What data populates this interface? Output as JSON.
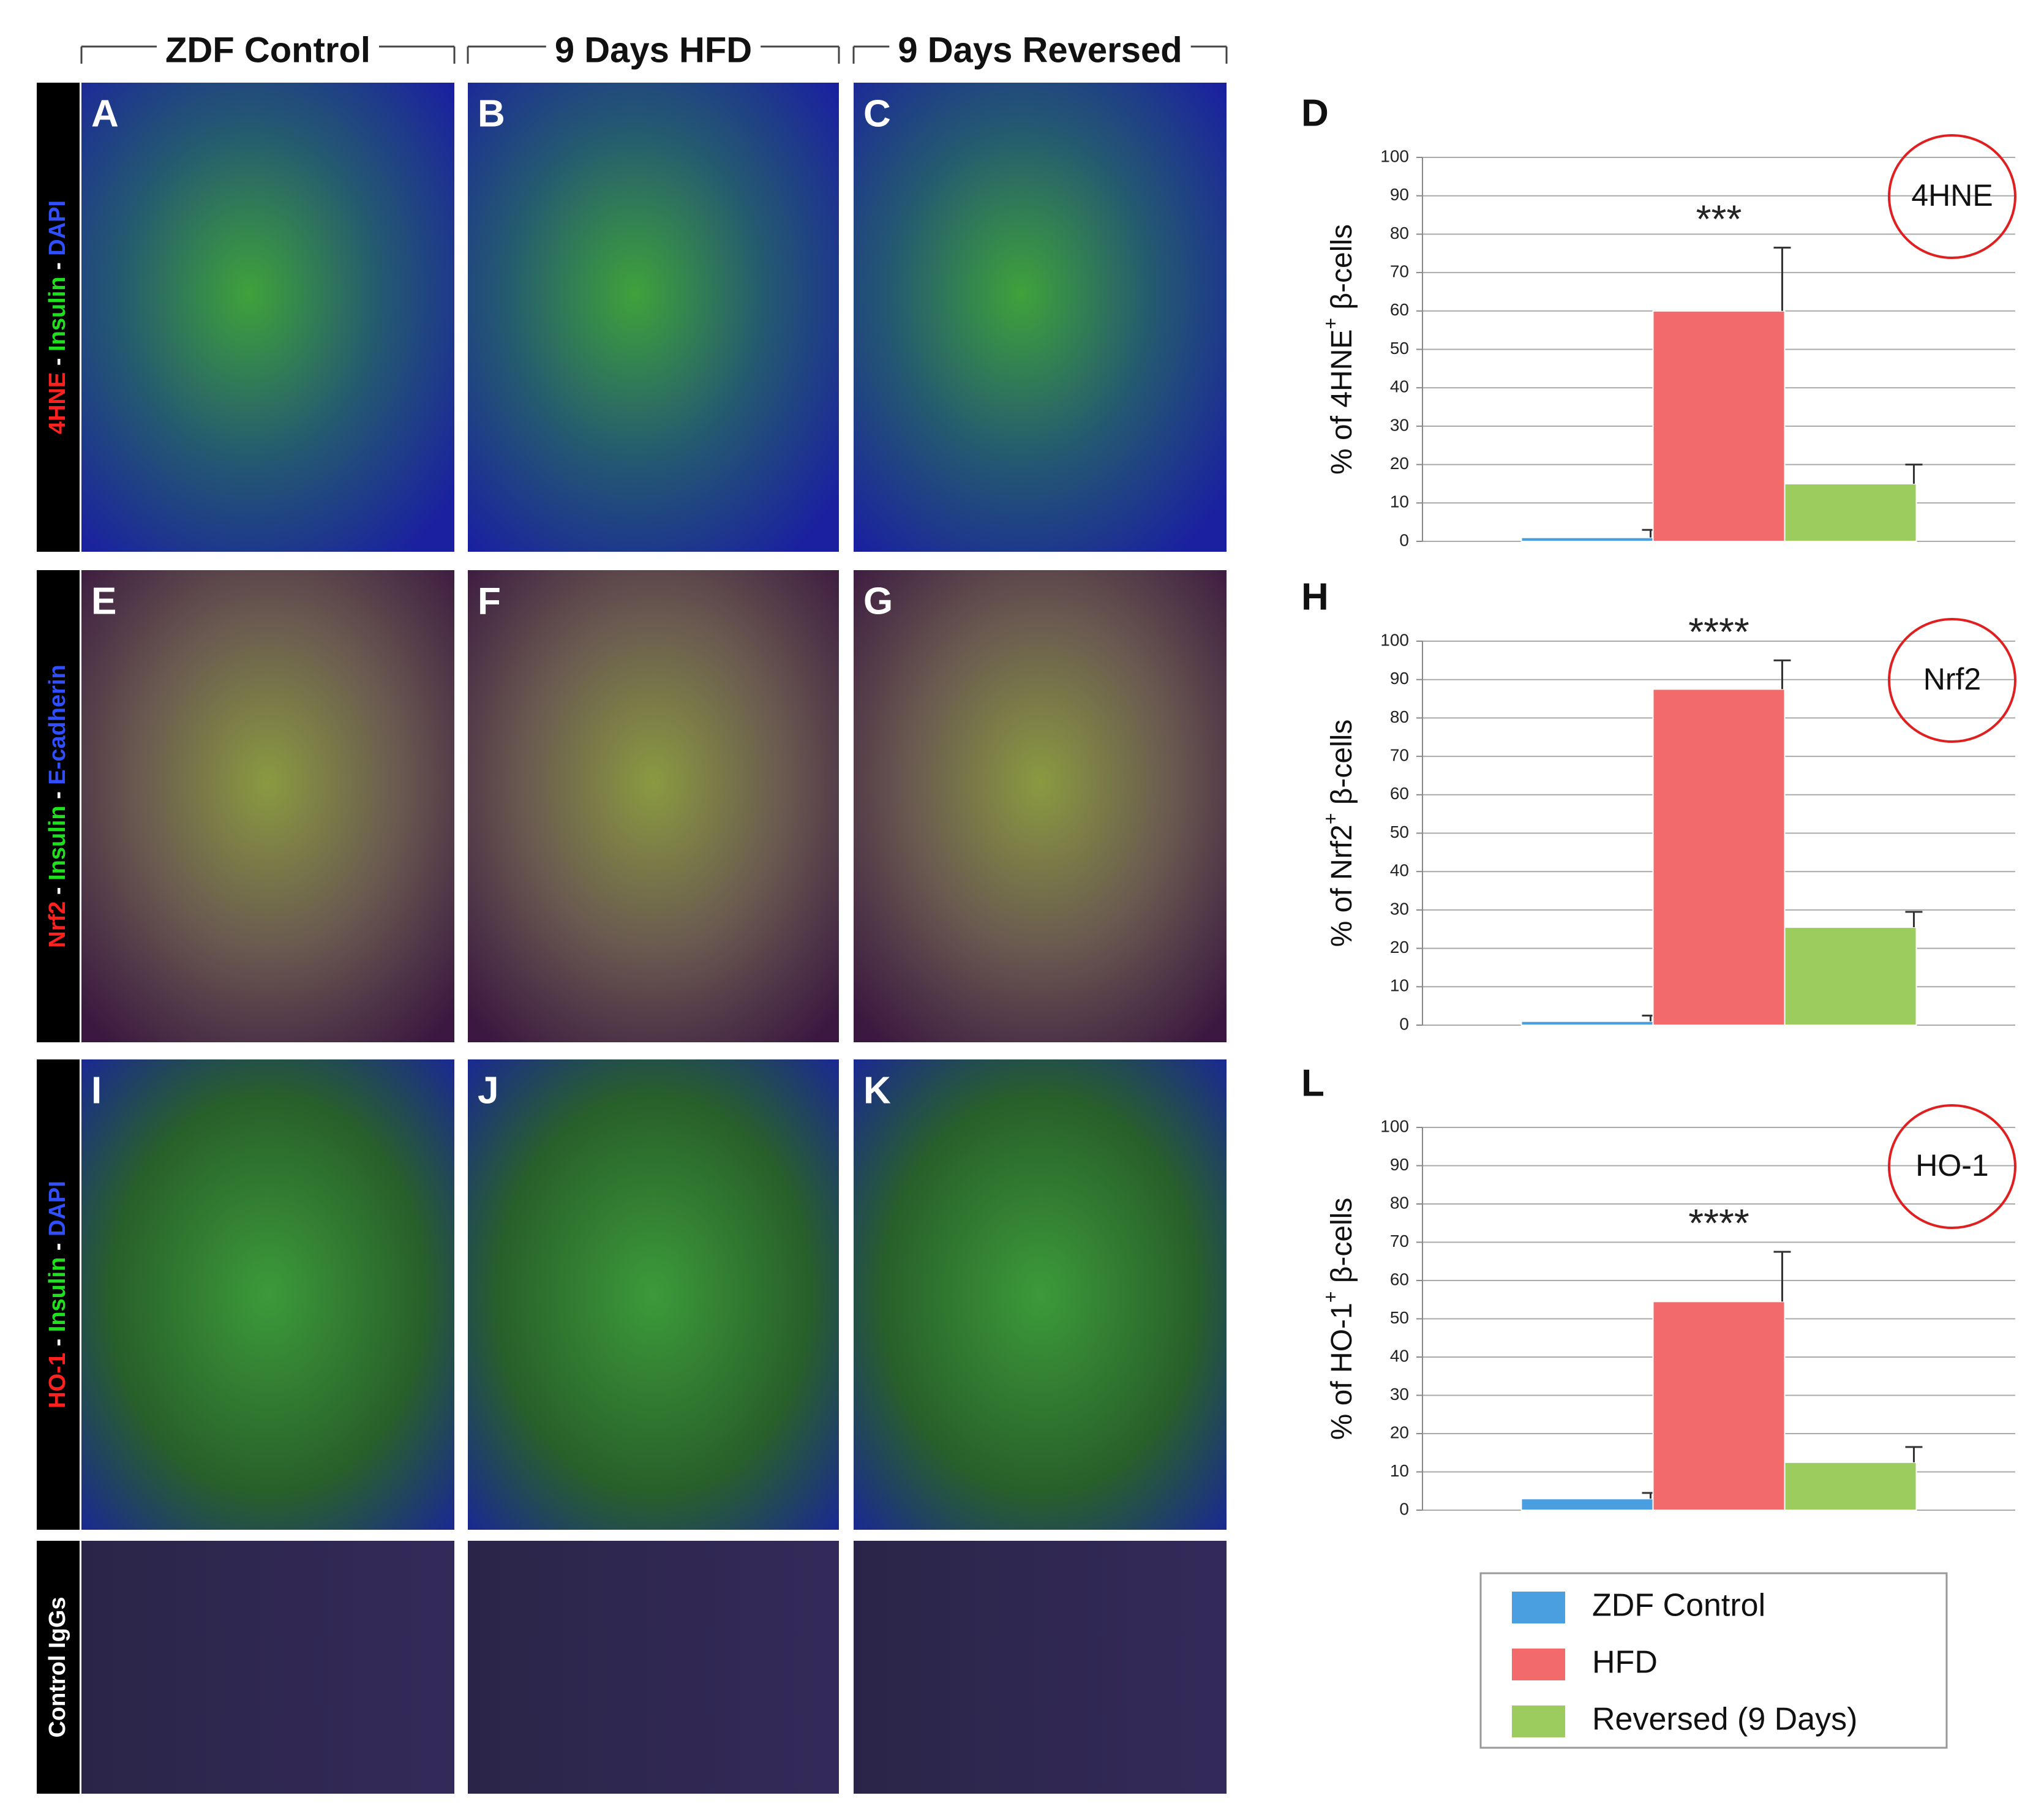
{
  "columns": [
    "ZDF Control",
    "9 Days HFD",
    "9 Days Reversed"
  ],
  "rows": [
    {
      "letters": [
        "A",
        "B",
        "C"
      ],
      "stain": [
        {
          "text": "4HNE",
          "color": "#ff2020"
        },
        {
          "text": " - ",
          "color": "#ffffff"
        },
        {
          "text": "Insulin",
          "color": "#20e020"
        },
        {
          "text": " - ",
          "color": "#ffffff"
        },
        {
          "text": "DAPI",
          "color": "#3050ff"
        }
      ]
    },
    {
      "letters": [
        "E",
        "F",
        "G"
      ],
      "stain": [
        {
          "text": "Nrf2",
          "color": "#ff2020"
        },
        {
          "text": " - ",
          "color": "#ffffff"
        },
        {
          "text": "Insulin",
          "color": "#20e020"
        },
        {
          "text": " - ",
          "color": "#ffffff"
        },
        {
          "text": "E-cadherin",
          "color": "#3050ff"
        }
      ]
    },
    {
      "letters": [
        "I",
        "J",
        "K"
      ],
      "stain": [
        {
          "text": "HO-1",
          "color": "#ff2020"
        },
        {
          "text": " - ",
          "color": "#ffffff"
        },
        {
          "text": "Insulin",
          "color": "#20e020"
        },
        {
          "text": " - ",
          "color": "#ffffff"
        },
        {
          "text": "DAPI",
          "color": "#3050ff"
        }
      ]
    }
  ],
  "control_label": "Control IgGs",
  "legend": {
    "labels": [
      "ZDF Control",
      "HFD",
      "Reversed (9 Days)"
    ],
    "colors": [
      "#4a9fe0",
      "#f26a6a",
      "#9ccc5e"
    ]
  },
  "chart_data": [
    {
      "type": "bar",
      "panel": "D",
      "ylabel": "% of 4HNE",
      "ylabel_sup": "+",
      "ylabel_end": " β-cells",
      "badge": "4HNE",
      "annotation": "***",
      "values": [
        1,
        60,
        15
      ],
      "errors": [
        2,
        16.5,
        5
      ],
      "ylim": [
        0,
        100
      ],
      "yticks": [
        0,
        10,
        20,
        30,
        40,
        50,
        60,
        70,
        80,
        90,
        100
      ],
      "grid": true
    },
    {
      "type": "bar",
      "panel": "H",
      "ylabel": "% of Nrf2",
      "ylabel_sup": "+",
      "ylabel_end": " β-cells",
      "badge": "Nrf2",
      "annotation": "****",
      "values": [
        1,
        87.5,
        25.5
      ],
      "errors": [
        1.5,
        7.5,
        4
      ],
      "ylim": [
        0,
        100
      ],
      "yticks": [
        0,
        10,
        20,
        30,
        40,
        50,
        60,
        70,
        80,
        90,
        100
      ],
      "grid": true
    },
    {
      "type": "bar",
      "panel": "L",
      "ylabel": "% of HO-1",
      "ylabel_sup": "+",
      "ylabel_end": " β-cells",
      "badge": "HO-1",
      "annotation": "****",
      "values": [
        3,
        54.5,
        12.5
      ],
      "errors": [
        1.5,
        13,
        4
      ],
      "ylim": [
        0,
        100
      ],
      "yticks": [
        0,
        10,
        20,
        30,
        40,
        50,
        60,
        70,
        80,
        90,
        100
      ],
      "grid": true
    }
  ]
}
